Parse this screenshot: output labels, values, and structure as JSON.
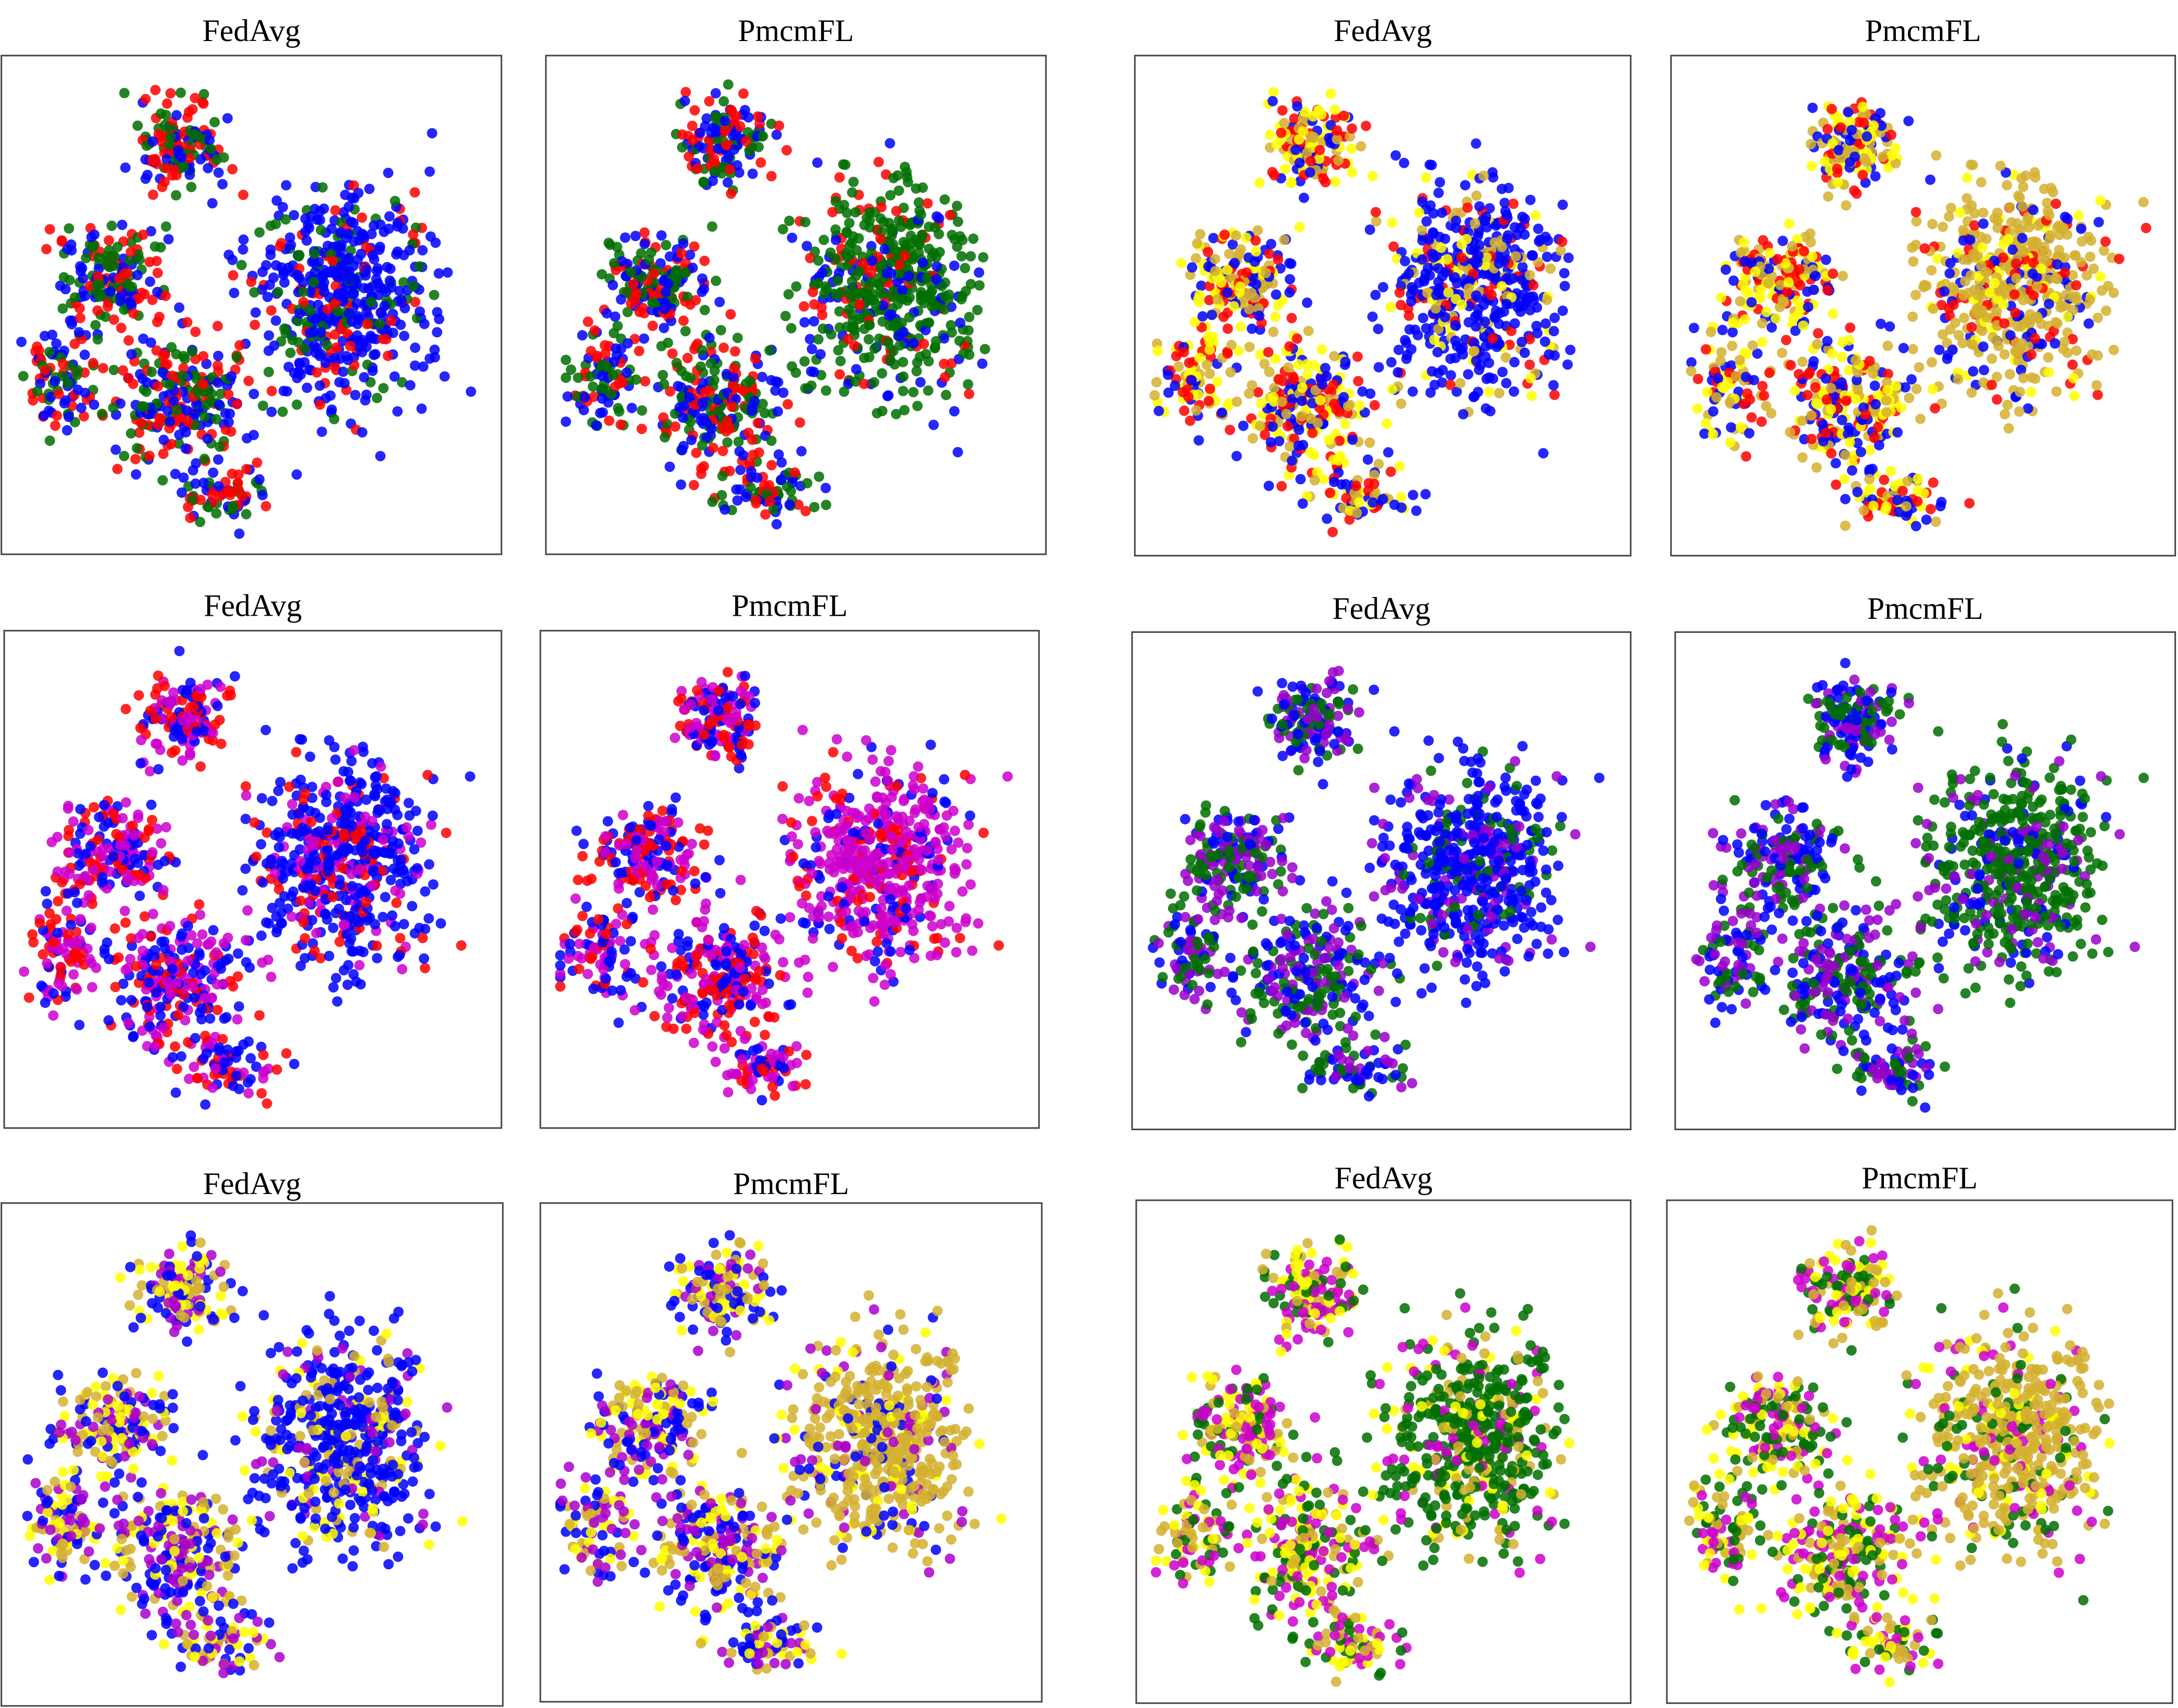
{
  "chart_data": [
    {
      "type": "scatter",
      "title": "FedAvg",
      "colors": [
        "#0000ff",
        "#ff0000",
        "#006f00"
      ]
    },
    {
      "type": "scatter",
      "title": "PmcmFL",
      "colors": [
        "#0000ff",
        "#ff0000",
        "#006f00"
      ]
    },
    {
      "type": "scatter",
      "title": "FedAvg",
      "colors": [
        "#0000ff",
        "#ff0000",
        "#ffff00",
        "#d4b030"
      ]
    },
    {
      "type": "scatter",
      "title": "PmcmFL",
      "colors": [
        "#0000ff",
        "#ff0000",
        "#ffff00",
        "#d4b030"
      ]
    },
    {
      "type": "scatter",
      "title": "FedAvg",
      "colors": [
        "#0000ff",
        "#ff0000",
        "#cc00cc"
      ]
    },
    {
      "type": "scatter",
      "title": "PmcmFL",
      "colors": [
        "#0000ff",
        "#ff0000",
        "#cc00cc"
      ]
    },
    {
      "type": "scatter",
      "title": "FedAvg",
      "colors": [
        "#0000ff",
        "#9900cc",
        "#006f00"
      ]
    },
    {
      "type": "scatter",
      "title": "PmcmFL",
      "colors": [
        "#0000ff",
        "#9900cc",
        "#006f00"
      ]
    },
    {
      "type": "scatter",
      "title": "FedAvg",
      "colors": [
        "#0000ff",
        "#aa00cc",
        "#ffff00",
        "#d4b030"
      ]
    },
    {
      "type": "scatter",
      "title": "PmcmFL",
      "colors": [
        "#0000ff",
        "#aa00cc",
        "#ffff00",
        "#d4b030"
      ]
    },
    {
      "type": "scatter",
      "title": "FedAvg",
      "colors": [
        "#006f00",
        "#cc00cc",
        "#ffff00",
        "#d4b030"
      ]
    },
    {
      "type": "scatter",
      "title": "PmcmFL",
      "colors": [
        "#006f00",
        "#cc00cc",
        "#ffff00",
        "#d4b030"
      ]
    }
  ]
}
